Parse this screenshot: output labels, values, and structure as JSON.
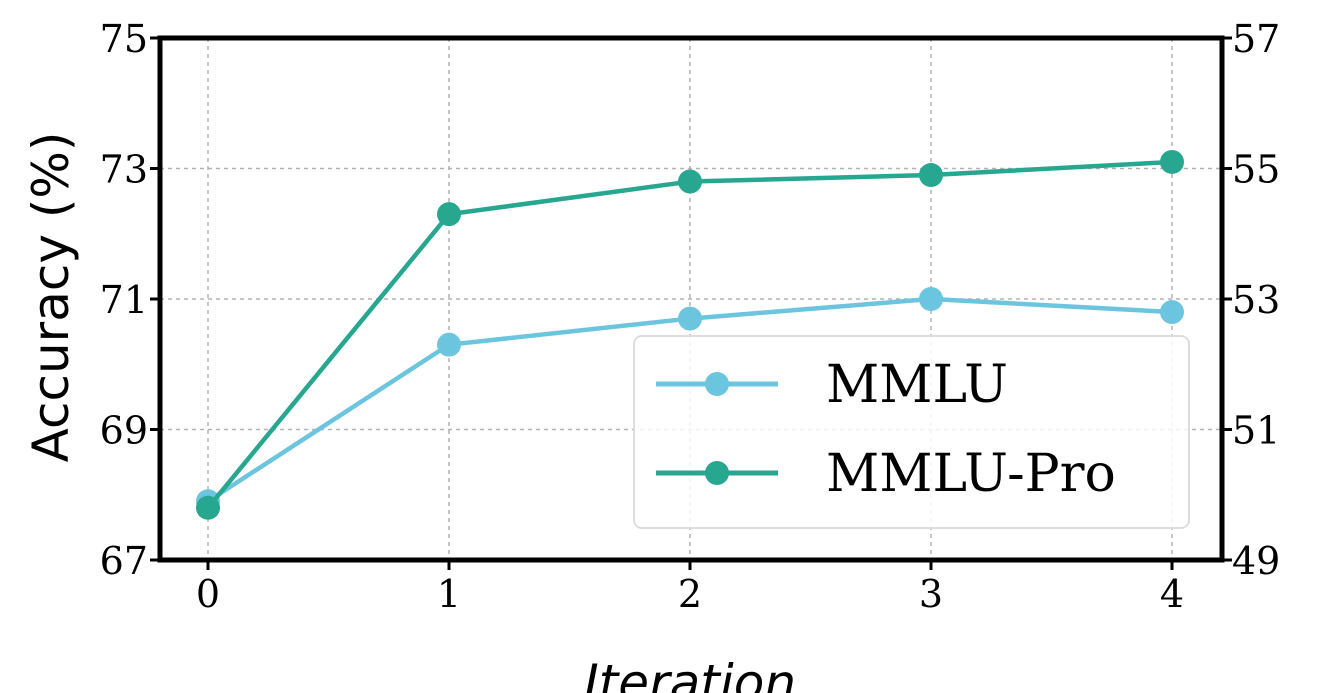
{
  "chart_data": {
    "type": "line",
    "x": [
      0,
      1,
      2,
      3,
      4
    ],
    "xlabel": "Iteration",
    "ylabel": "Accuracy (%)",
    "ylim": [
      67,
      75
    ],
    "y2lim": [
      49,
      57
    ],
    "yticks": [
      "67",
      "69",
      "71",
      "73",
      "75"
    ],
    "y2ticks": [
      "49",
      "51",
      "53",
      "55",
      "57"
    ],
    "xticks": [
      "0",
      "1",
      "2",
      "3",
      "4"
    ],
    "grid": true,
    "legend_position": "lower-right",
    "series": [
      {
        "name": "MMLU",
        "axis": "left",
        "values": [
          67.9,
          70.3,
          70.7,
          71.0,
          70.8
        ],
        "color": "#6CC5DE"
      },
      {
        "name": "MMLU-Pro",
        "axis": "right",
        "values": [
          49.8,
          54.3,
          54.8,
          54.9,
          55.1
        ],
        "color": "#27A690"
      }
    ]
  }
}
